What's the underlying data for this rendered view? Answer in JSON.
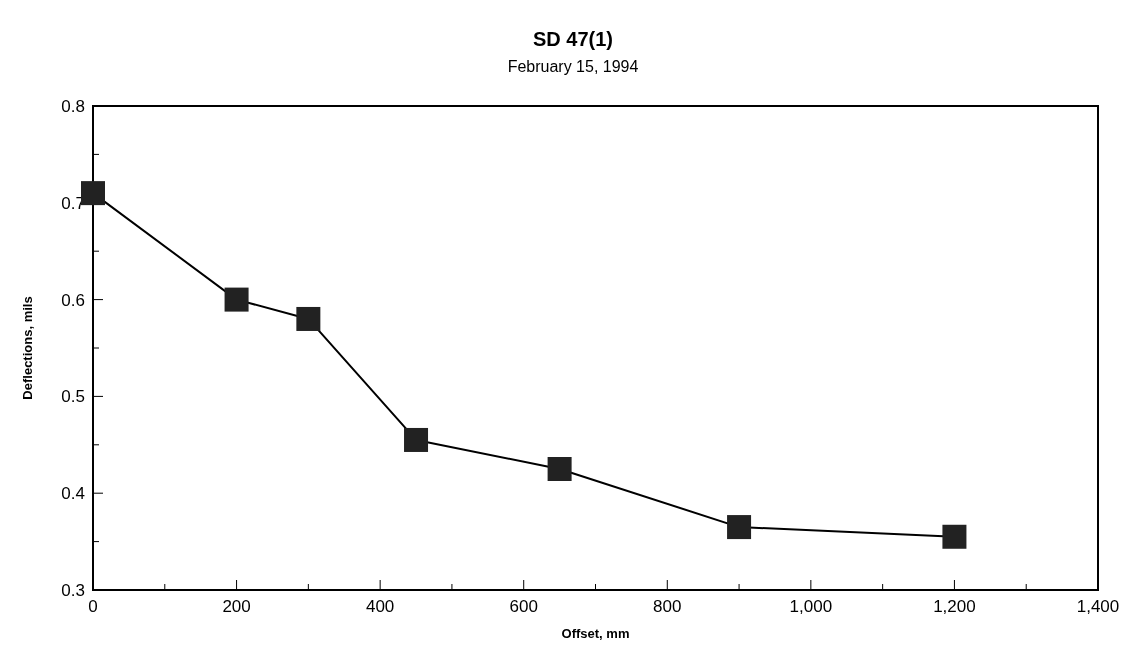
{
  "chart_data": {
    "type": "line",
    "title": "SD 47(1)",
    "subtitle": "February 15, 1994",
    "xlabel": "Offset, mm",
    "ylabel": "Deflections, mils",
    "x": [
      0,
      200,
      300,
      450,
      650,
      900,
      1200
    ],
    "values": [
      0.71,
      0.6,
      0.58,
      0.455,
      0.425,
      0.365,
      0.355
    ],
    "color": "#000000",
    "marker": "square",
    "line_style": "solid",
    "xlim": [
      0,
      1400
    ],
    "xticks": [
      0,
      {
        "value": 100,
        "label": null
      },
      200,
      {
        "value": 300,
        "label": null
      },
      400,
      {
        "value": 500,
        "label": null
      },
      600,
      {
        "value": 700,
        "label": null
      },
      800,
      {
        "value": 900,
        "label": null
      },
      {
        "value": 1000,
        "label": "1,000"
      },
      {
        "value": 1100,
        "label": null
      },
      {
        "value": 1200,
        "label": "1,200"
      },
      {
        "value": 1300,
        "label": null
      },
      {
        "value": 1400,
        "label": "1,400"
      }
    ],
    "ylim": [
      0.3,
      0.8
    ],
    "yticks": [
      0.3,
      {
        "value": 0.35,
        "label": null
      },
      0.4,
      {
        "value": 0.45,
        "label": null
      },
      0.5,
      {
        "value": 0.55,
        "label": null
      },
      0.6,
      {
        "value": 0.65,
        "label": null
      },
      0.7,
      {
        "value": 0.75,
        "label": null
      },
      0.8
    ],
    "grid": false
  }
}
